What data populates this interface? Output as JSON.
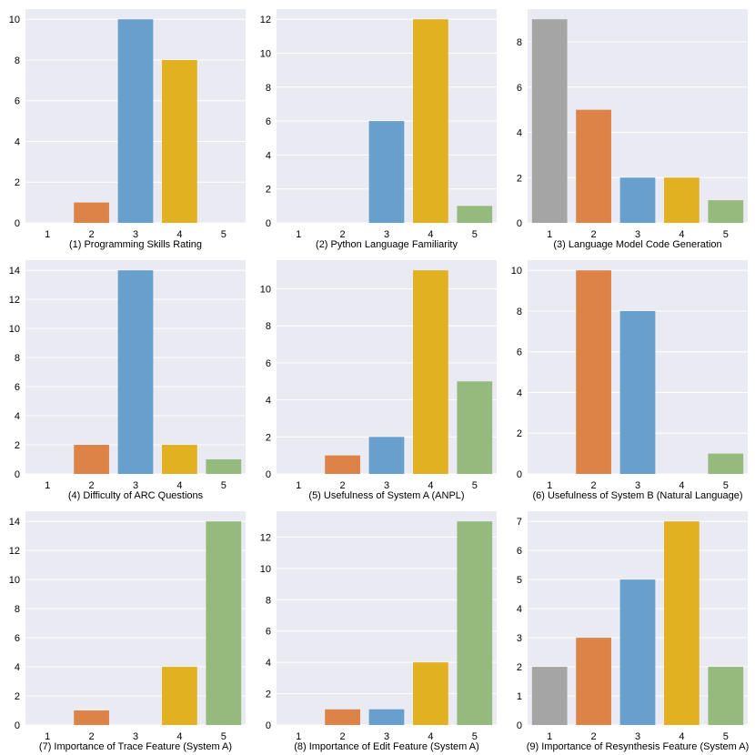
{
  "colors": {
    "plot_bg": "#eaeaf2",
    "grid": "#ffffff",
    "text": "#000000",
    "bar_1": "#a5a5a5",
    "bar_2": "#dd8347",
    "bar_3": "#679fcd",
    "bar_4": "#e2b122",
    "bar_5": "#95ba7d"
  },
  "chart_data": [
    {
      "type": "bar",
      "title": "(1) Programming Skills Rating",
      "categories": [
        "1",
        "2",
        "3",
        "4",
        "5"
      ],
      "values": [
        0,
        1,
        10,
        8,
        0
      ],
      "ylim": [
        0,
        10.5
      ],
      "yticks": [
        0,
        2,
        4,
        6,
        8,
        10
      ],
      "grid": true
    },
    {
      "type": "bar",
      "title": "(2) Python Language Familiarity",
      "categories": [
        "1",
        "2",
        "3",
        "4",
        "5"
      ],
      "values": [
        0,
        0,
        6,
        12,
        1
      ],
      "ylim": [
        0,
        12.6
      ],
      "yticks": [
        0,
        2,
        4,
        6,
        8,
        10,
        12
      ],
      "grid": true
    },
    {
      "type": "bar",
      "title": "(3) Language Model Code Generation",
      "categories": [
        "1",
        "2",
        "3",
        "4",
        "5"
      ],
      "values": [
        9,
        5,
        2,
        2,
        1
      ],
      "ylim": [
        0,
        9.45
      ],
      "yticks": [
        0,
        2,
        4,
        6,
        8
      ],
      "grid": true
    },
    {
      "type": "bar",
      "title": "(4) Difficulty of ARC Questions",
      "categories": [
        "1",
        "2",
        "3",
        "4",
        "5"
      ],
      "values": [
        0,
        2,
        14,
        2,
        1
      ],
      "ylim": [
        0,
        14.7
      ],
      "yticks": [
        0,
        2,
        4,
        6,
        8,
        10,
        12,
        14
      ],
      "grid": true
    },
    {
      "type": "bar",
      "title": "(5) Usefulness of System A (ANPL)",
      "categories": [
        "1",
        "2",
        "3",
        "4",
        "5"
      ],
      "values": [
        0,
        1,
        2,
        11,
        5
      ],
      "ylim": [
        0,
        11.55
      ],
      "yticks": [
        0,
        2,
        4,
        6,
        8,
        10
      ],
      "grid": true
    },
    {
      "type": "bar",
      "title": "(6) Usefulness of System B (Natural Language)",
      "categories": [
        "1",
        "2",
        "3",
        "4",
        "5"
      ],
      "values": [
        0,
        10,
        8,
        0,
        1
      ],
      "ylim": [
        0,
        10.5
      ],
      "yticks": [
        0,
        2,
        4,
        6,
        8,
        10
      ],
      "grid": true
    },
    {
      "type": "bar",
      "title": "(7) Importance of Trace Feature (System A)",
      "categories": [
        "1",
        "2",
        "3",
        "4",
        "5"
      ],
      "values": [
        0,
        1,
        0,
        4,
        14
      ],
      "ylim": [
        0,
        14.7
      ],
      "yticks": [
        0,
        2,
        4,
        6,
        8,
        10,
        12,
        14
      ],
      "grid": true
    },
    {
      "type": "bar",
      "title": "(8) Importance of Edit Feature (System A)",
      "categories": [
        "1",
        "2",
        "3",
        "4",
        "5"
      ],
      "values": [
        0,
        1,
        1,
        4,
        13
      ],
      "ylim": [
        0,
        13.65
      ],
      "yticks": [
        0,
        2,
        4,
        6,
        8,
        10,
        12
      ],
      "grid": true
    },
    {
      "type": "bar",
      "title": "(9) Importance of Resynthesis Feature (System A)",
      "categories": [
        "1",
        "2",
        "3",
        "4",
        "5"
      ],
      "values": [
        2,
        3,
        5,
        7,
        2
      ],
      "ylim": [
        0,
        7.35
      ],
      "yticks": [
        0,
        1,
        2,
        3,
        4,
        5,
        6,
        7
      ],
      "grid": true
    }
  ]
}
